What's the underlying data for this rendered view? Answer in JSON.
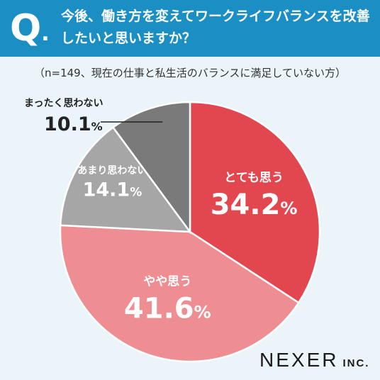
{
  "header": {
    "q_letter": "Q",
    "q_dot": ".",
    "question": "今後、働き方を変えてワークライフバランスを改善したいと思いますか？"
  },
  "subtitle": "（n=149、現在の仕事と私生活のバランスに満足していない方）",
  "brand": {
    "name": "NEXER",
    "suffix": "INC."
  },
  "colors": {
    "header_bg": "#1b8fc4",
    "background": "#eaf4f9"
  },
  "chart_data": {
    "type": "pie",
    "unit": "%",
    "slices": [
      {
        "label": "とても思う",
        "value": 34.2,
        "display": "34.2",
        "color": "#e2474f",
        "text_color": "#ffffff"
      },
      {
        "label": "やや思う",
        "value": 41.6,
        "display": "41.6",
        "color": "#ee8d92",
        "text_color": "#ffffff"
      },
      {
        "label": "あまり思わない",
        "value": 14.1,
        "display": "14.1",
        "color": "#a6a6a6",
        "text_color": "#ffffff"
      },
      {
        "label": "まったく思わない",
        "value": 10.1,
        "display": "10.1",
        "color": "#7a7a7a",
        "text_color": "#222222",
        "external": true
      }
    ]
  }
}
